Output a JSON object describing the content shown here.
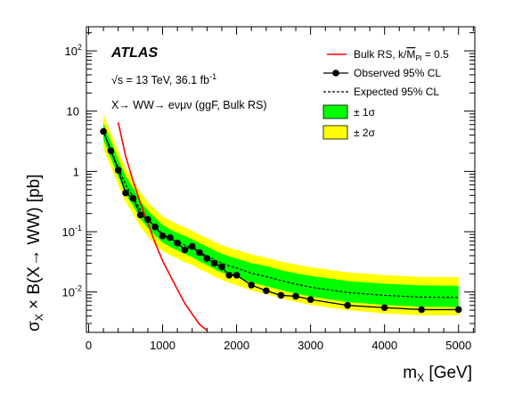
{
  "chart_data": {
    "type": "line",
    "experiment": "ATLAS",
    "energy_label": "√s = 13 TeV,  36.1 fb",
    "lumi_sup": "-1",
    "process_label": "X→ WW→ eνμν (ggF, Bulk RS)",
    "xlabel_main": "m",
    "xlabel_sub": "X",
    "xlabel_unit": " [GeV]",
    "ylabel_main": "σ",
    "ylabel_sub": "X",
    "ylabel_rest": " × B(X→ WW) [pb]",
    "xlim": [
      -30,
      5220
    ],
    "ylim_log10": [
      -2.67,
      2.4
    ],
    "yscale": "log",
    "x_ticks": [
      0,
      1000,
      2000,
      3000,
      4000,
      5000
    ],
    "x_tick_labels": [
      "0",
      "1000",
      "2000",
      "3000",
      "4000",
      "5000"
    ],
    "y_ticks": [
      0.01,
      0.1,
      1,
      10,
      100
    ],
    "y_tick_labels": [
      {
        "base": "10",
        "exp": "-2"
      },
      {
        "base": "10",
        "exp": "-1"
      },
      {
        "base": "1",
        "exp": ""
      },
      {
        "base": "10",
        "exp": ""
      },
      {
        "base": "10",
        "exp": "2"
      }
    ],
    "legend": {
      "placement": "top-right",
      "entries": [
        {
          "key": "theory",
          "label": "Bulk RS, k/",
          "label_m": "M",
          "label_m_sub": "Pl",
          "label_tail": " = 0.5"
        },
        {
          "key": "observed",
          "label": "Observed 95% CL"
        },
        {
          "key": "expected",
          "label": "Expected 95% CL"
        },
        {
          "key": "band1",
          "label": "± 1σ"
        },
        {
          "key": "band2",
          "label": "± 2σ"
        }
      ]
    },
    "colors": {
      "theory": "#ff0000",
      "observed": "#000000",
      "expected": "#000000",
      "band1": "#00ff00",
      "band2": "#ffff00"
    },
    "series": [
      {
        "name": "Observed 95% CL",
        "x": [
          200,
          300,
          400,
          500,
          600,
          700,
          800,
          900,
          1000,
          1100,
          1200,
          1300,
          1400,
          1500,
          1600,
          1700,
          1800,
          1900,
          2000,
          2200,
          2400,
          2600,
          2800,
          3000,
          3500,
          4000,
          4500,
          5000
        ],
        "y": [
          4.6,
          2.2,
          1.05,
          0.44,
          0.36,
          0.19,
          0.16,
          0.12,
          0.085,
          0.08,
          0.065,
          0.05,
          0.057,
          0.045,
          0.036,
          0.03,
          0.026,
          0.019,
          0.019,
          0.013,
          0.0105,
          0.0088,
          0.0085,
          0.0075,
          0.006,
          0.0055,
          0.0051,
          0.0051
        ]
      },
      {
        "name": "Expected 95% CL",
        "x": [
          200,
          300,
          400,
          500,
          600,
          700,
          800,
          900,
          1000,
          1100,
          1200,
          1300,
          1400,
          1500,
          1600,
          1700,
          1800,
          1900,
          2000,
          2200,
          2400,
          2600,
          2800,
          3000,
          3500,
          4000,
          4500,
          5000
        ],
        "y": [
          4.6,
          2.3,
          1.15,
          0.6,
          0.38,
          0.23,
          0.16,
          0.12,
          0.092,
          0.078,
          0.068,
          0.06,
          0.053,
          0.045,
          0.04,
          0.034,
          0.03,
          0.027,
          0.025,
          0.0205,
          0.018,
          0.0155,
          0.0135,
          0.012,
          0.0098,
          0.0088,
          0.0082,
          0.0081
        ]
      },
      {
        "name": "Bulk RS, k/MPl = 0.5",
        "x": [
          400,
          500,
          600,
          700,
          800,
          900,
          1000,
          1100,
          1200,
          1300,
          1400,
          1500,
          1600
        ],
        "y": [
          6.5,
          1.8,
          0.7,
          0.3,
          0.14,
          0.065,
          0.033,
          0.019,
          0.011,
          0.0065,
          0.0043,
          0.0029,
          0.0023
        ]
      }
    ],
    "bands": {
      "x": [
        200,
        300,
        400,
        500,
        600,
        700,
        800,
        900,
        1000,
        1100,
        1200,
        1300,
        1400,
        1500,
        1600,
        1700,
        1800,
        1900,
        2000,
        2200,
        2400,
        2600,
        2800,
        3000,
        3500,
        4000,
        4500,
        5000
      ],
      "one_sigma_low": [
        3.3,
        1.65,
        0.82,
        0.42,
        0.27,
        0.165,
        0.115,
        0.086,
        0.066,
        0.056,
        0.049,
        0.043,
        0.038,
        0.032,
        0.028,
        0.024,
        0.021,
        0.019,
        0.0175,
        0.0143,
        0.0125,
        0.0108,
        0.0094,
        0.0084,
        0.0068,
        0.0061,
        0.0057,
        0.0056
      ],
      "one_sigma_high": [
        6.4,
        3.2,
        1.6,
        0.84,
        0.53,
        0.32,
        0.225,
        0.17,
        0.13,
        0.11,
        0.096,
        0.085,
        0.075,
        0.064,
        0.057,
        0.049,
        0.043,
        0.039,
        0.036,
        0.03,
        0.027,
        0.023,
        0.0205,
        0.0185,
        0.0152,
        0.0137,
        0.0128,
        0.0127
      ],
      "two_sigma_low": [
        2.4,
        1.2,
        0.6,
        0.31,
        0.2,
        0.12,
        0.084,
        0.063,
        0.048,
        0.041,
        0.036,
        0.031,
        0.028,
        0.024,
        0.021,
        0.018,
        0.016,
        0.0142,
        0.013,
        0.0106,
        0.0092,
        0.0079,
        0.0069,
        0.0061,
        0.005,
        0.0044,
        0.0041,
        0.0041
      ],
      "two_sigma_high": [
        8.9,
        4.4,
        2.2,
        1.15,
        0.73,
        0.45,
        0.31,
        0.235,
        0.18,
        0.153,
        0.133,
        0.118,
        0.104,
        0.089,
        0.079,
        0.068,
        0.06,
        0.054,
        0.05,
        0.042,
        0.037,
        0.032,
        0.0285,
        0.0258,
        0.0212,
        0.019,
        0.0178,
        0.0176
      ]
    }
  }
}
